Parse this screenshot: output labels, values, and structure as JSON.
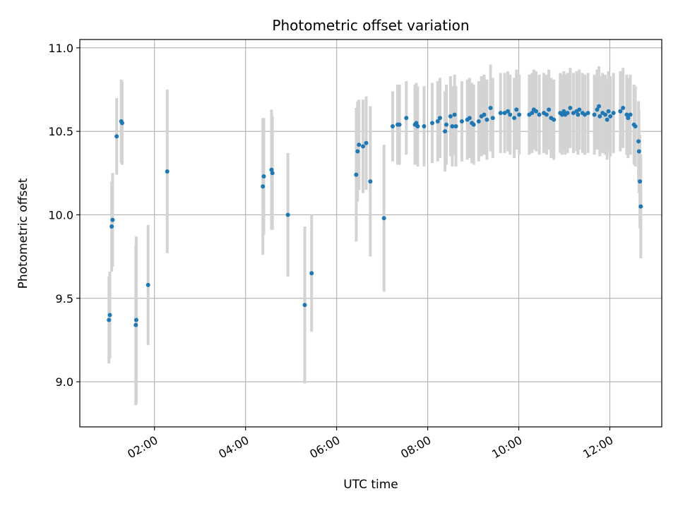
{
  "chart_data": {
    "type": "scatter",
    "title": "Photometric offset variation",
    "xlabel": "UTC time",
    "ylabel": "Photometric offset",
    "x_unit": "hours UTC",
    "xlim": [
      0.36,
      13.14
    ],
    "ylim": [
      8.73,
      11.05
    ],
    "x_ticks": [
      2,
      4,
      6,
      8,
      10,
      12
    ],
    "x_tick_labels": [
      "02:00",
      "04:00",
      "06:00",
      "08:00",
      "10:00",
      "12:00"
    ],
    "y_ticks": [
      9.0,
      9.5,
      10.0,
      10.5,
      11.0
    ],
    "y_tick_labels": [
      "9.0",
      "9.5",
      "10.0",
      "10.5",
      "11.0"
    ],
    "grid": true,
    "colors": {
      "points": "#1f77b4",
      "errorbars": "#d3d3d3",
      "grid": "#b0b0b0"
    },
    "points": [
      [
        1.0,
        9.37,
        0.26
      ],
      [
        1.02,
        9.4,
        0.26
      ],
      [
        1.06,
        9.93,
        0.27
      ],
      [
        1.08,
        9.97,
        0.28
      ],
      [
        1.17,
        10.47,
        0.23
      ],
      [
        1.27,
        10.56,
        0.25
      ],
      [
        1.29,
        10.55,
        0.25
      ],
      [
        1.59,
        9.34,
        0.48
      ],
      [
        1.6,
        9.37,
        0.5
      ],
      [
        1.86,
        9.58,
        0.36
      ],
      [
        2.28,
        10.26,
        0.49
      ],
      [
        4.38,
        10.17,
        0.41
      ],
      [
        4.4,
        10.23,
        0.35
      ],
      [
        4.57,
        10.27,
        0.36
      ],
      [
        4.59,
        10.25,
        0.34
      ],
      [
        4.93,
        10.0,
        0.37
      ],
      [
        5.3,
        9.46,
        0.47
      ],
      [
        5.45,
        9.65,
        0.35
      ],
      [
        6.43,
        10.24,
        0.4
      ],
      [
        6.46,
        10.38,
        0.3
      ],
      [
        6.49,
        10.42,
        0.27
      ],
      [
        6.58,
        10.41,
        0.28
      ],
      [
        6.65,
        10.43,
        0.28
      ],
      [
        6.74,
        10.2,
        0.45
      ],
      [
        7.04,
        9.98,
        0.44
      ],
      [
        7.23,
        10.53,
        0.21
      ],
      [
        7.34,
        10.54,
        0.24
      ],
      [
        7.38,
        10.54,
        0.24
      ],
      [
        7.53,
        10.58,
        0.22
      ],
      [
        7.72,
        10.54,
        0.24
      ],
      [
        7.75,
        10.55,
        0.24
      ],
      [
        7.78,
        10.53,
        0.24
      ],
      [
        7.92,
        10.53,
        0.24
      ],
      [
        8.1,
        10.55,
        0.24
      ],
      [
        8.22,
        10.56,
        0.24
      ],
      [
        8.27,
        10.58,
        0.24
      ],
      [
        8.38,
        10.5,
        0.24
      ],
      [
        8.41,
        10.54,
        0.24
      ],
      [
        8.5,
        10.59,
        0.24
      ],
      [
        8.54,
        10.53,
        0.24
      ],
      [
        8.59,
        10.6,
        0.24
      ],
      [
        8.62,
        10.53,
        0.24
      ],
      [
        8.75,
        10.56,
        0.24
      ],
      [
        8.87,
        10.57,
        0.24
      ],
      [
        8.92,
        10.58,
        0.24
      ],
      [
        8.97,
        10.55,
        0.24
      ],
      [
        9.01,
        10.54,
        0.24
      ],
      [
        9.12,
        10.56,
        0.24
      ],
      [
        9.18,
        10.59,
        0.24
      ],
      [
        9.24,
        10.6,
        0.24
      ],
      [
        9.3,
        10.57,
        0.24
      ],
      [
        9.38,
        10.64,
        0.26
      ],
      [
        9.43,
        10.58,
        0.24
      ],
      [
        9.6,
        10.61,
        0.24
      ],
      [
        9.69,
        10.61,
        0.24
      ],
      [
        9.76,
        10.62,
        0.24
      ],
      [
        9.81,
        10.6,
        0.24
      ],
      [
        9.9,
        10.58,
        0.24
      ],
      [
        9.95,
        10.63,
        0.24
      ],
      [
        10.01,
        10.6,
        0.24
      ],
      [
        10.23,
        10.6,
        0.24
      ],
      [
        10.29,
        10.61,
        0.24
      ],
      [
        10.33,
        10.63,
        0.24
      ],
      [
        10.38,
        10.62,
        0.24
      ],
      [
        10.45,
        10.6,
        0.24
      ],
      [
        10.55,
        10.61,
        0.24
      ],
      [
        10.61,
        10.6,
        0.24
      ],
      [
        10.66,
        10.63,
        0.24
      ],
      [
        10.71,
        10.58,
        0.24
      ],
      [
        10.77,
        10.57,
        0.24
      ],
      [
        10.91,
        10.61,
        0.24
      ],
      [
        10.95,
        10.6,
        0.24
      ],
      [
        10.99,
        10.62,
        0.24
      ],
      [
        11.02,
        10.6,
        0.24
      ],
      [
        11.07,
        10.61,
        0.24
      ],
      [
        11.13,
        10.64,
        0.24
      ],
      [
        11.2,
        10.61,
        0.24
      ],
      [
        11.27,
        10.62,
        0.24
      ],
      [
        11.3,
        10.6,
        0.24
      ],
      [
        11.33,
        10.63,
        0.24
      ],
      [
        11.4,
        10.61,
        0.24
      ],
      [
        11.45,
        10.6,
        0.24
      ],
      [
        11.52,
        10.61,
        0.24
      ],
      [
        11.66,
        10.6,
        0.24
      ],
      [
        11.72,
        10.63,
        0.24
      ],
      [
        11.76,
        10.65,
        0.24
      ],
      [
        11.78,
        10.59,
        0.24
      ],
      [
        11.84,
        10.61,
        0.24
      ],
      [
        11.9,
        10.6,
        0.24
      ],
      [
        11.94,
        10.57,
        0.24
      ],
      [
        11.97,
        10.62,
        0.24
      ],
      [
        12.01,
        10.59,
        0.24
      ],
      [
        12.08,
        10.61,
        0.24
      ],
      [
        12.23,
        10.62,
        0.24
      ],
      [
        12.29,
        10.64,
        0.24
      ],
      [
        12.37,
        10.6,
        0.24
      ],
      [
        12.4,
        10.58,
        0.24
      ],
      [
        12.45,
        10.6,
        0.24
      ],
      [
        12.53,
        10.54,
        0.24
      ],
      [
        12.56,
        10.53,
        0.24
      ],
      [
        12.63,
        10.44,
        0.24
      ],
      [
        12.64,
        10.38,
        0.25
      ],
      [
        12.66,
        10.2,
        0.28
      ],
      [
        12.68,
        10.05,
        0.31
      ]
    ]
  }
}
